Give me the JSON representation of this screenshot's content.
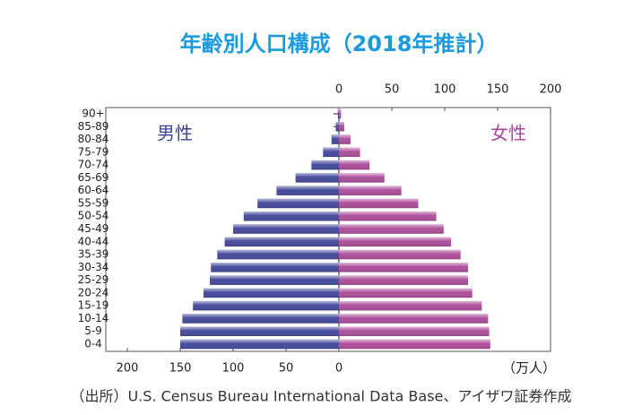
{
  "chart_data": {
    "type": "pyramid",
    "title": "年齢別人口構成（2018年推計）",
    "categories": [
      "0-4",
      "5-9",
      "10-14",
      "15-19",
      "20-24",
      "25-29",
      "30-34",
      "35-39",
      "40-44",
      "45-49",
      "50-54",
      "55-59",
      "60-64",
      "65-69",
      "70-74",
      "75-79",
      "80-84",
      "85-89",
      "90+"
    ],
    "series": [
      {
        "name": "男性",
        "color": "#464b9c",
        "values": [
          150,
          150,
          148,
          138,
          128,
          122,
          121,
          115,
          108,
          100,
          90,
          77,
          59,
          41,
          26,
          15,
          7,
          3,
          1
        ]
      },
      {
        "name": "女性",
        "color": "#ad4f9c",
        "values": [
          143,
          142,
          141,
          135,
          126,
          122,
          122,
          115,
          106,
          99,
          92,
          75,
          59,
          43,
          29,
          20,
          11,
          5,
          2
        ]
      }
    ],
    "xlim": [
      0,
      200
    ],
    "xticks": [
      0,
      50,
      100,
      150,
      200
    ],
    "unit": "（万人）",
    "source": "（出所）U.S. Census Bureau International Data Base、アイザワ証券作成"
  }
}
